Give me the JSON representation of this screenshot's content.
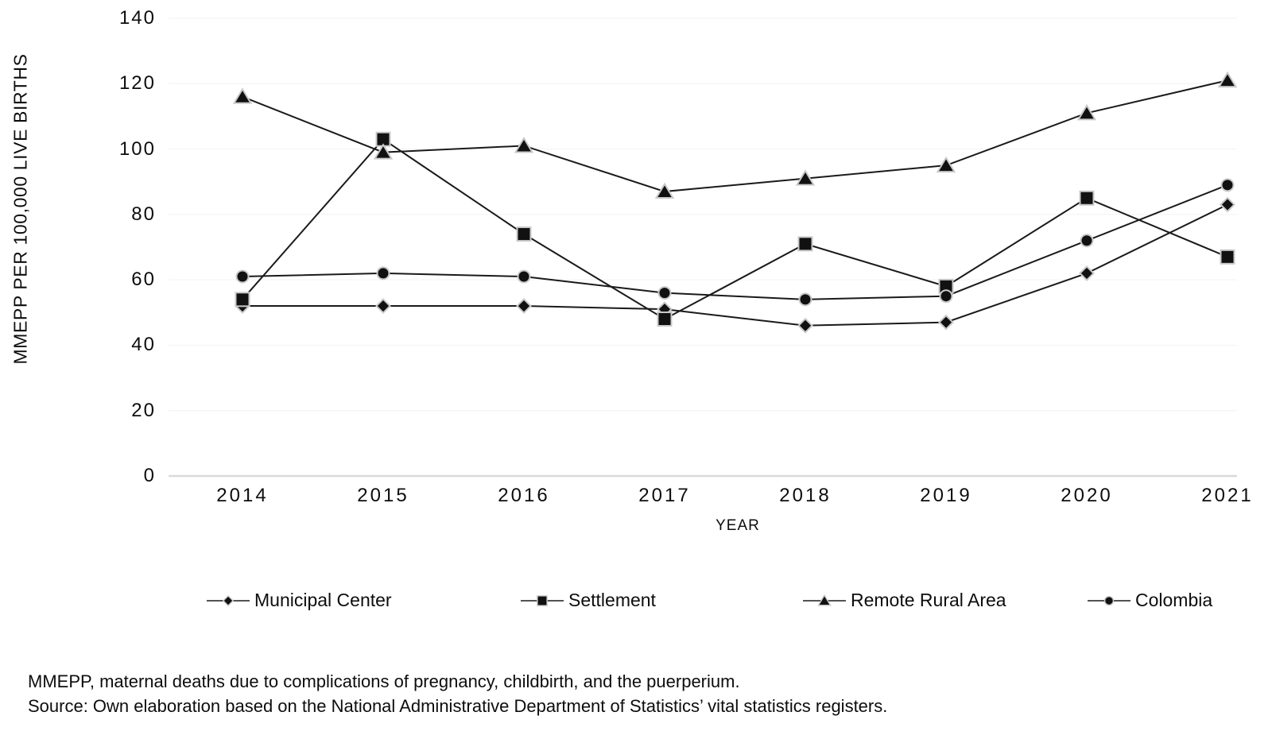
{
  "figure": {
    "footnote_line1": "MMEPP, maternal deaths due to complications of pregnancy, childbirth, and the puerperium.",
    "footnote_line2": "Source: Own elaboration based on the National Administrative Department of Statistics’ vital statistics registers."
  },
  "chart_data": {
    "type": "line",
    "x": [
      2014,
      2015,
      2016,
      2017,
      2018,
      2019,
      2020,
      2021
    ],
    "xlabel": "YEAR",
    "ylabel": "MMEPP PER 100,000 LIVE BIRTHS",
    "ylim": [
      0,
      140
    ],
    "yticks": [
      0,
      20,
      40,
      60,
      80,
      100,
      120,
      140
    ],
    "grid": "faint-horizontal",
    "legend_position": "bottom",
    "series": [
      {
        "name": "Municipal Center",
        "marker": "diamond",
        "values": [
          52,
          52,
          52,
          51,
          46,
          47,
          62,
          83
        ]
      },
      {
        "name": "Settlement",
        "marker": "square",
        "values": [
          54,
          103,
          74,
          48,
          71,
          58,
          85,
          67
        ]
      },
      {
        "name": "Remote Rural Area",
        "marker": "triangle",
        "values": [
          116,
          99,
          101,
          87,
          91,
          95,
          111,
          121
        ]
      },
      {
        "name": "Colombia",
        "marker": "circle",
        "values": [
          61,
          62,
          61,
          56,
          54,
          55,
          72,
          89
        ]
      }
    ],
    "colors": {
      "line": "#1a1a1a",
      "marker_fill": "#111111",
      "marker_halo": "#c9c9c9",
      "axis": "#d9d9d9",
      "gridline": "#f2f2f2",
      "text": "#0d0d0d"
    }
  }
}
